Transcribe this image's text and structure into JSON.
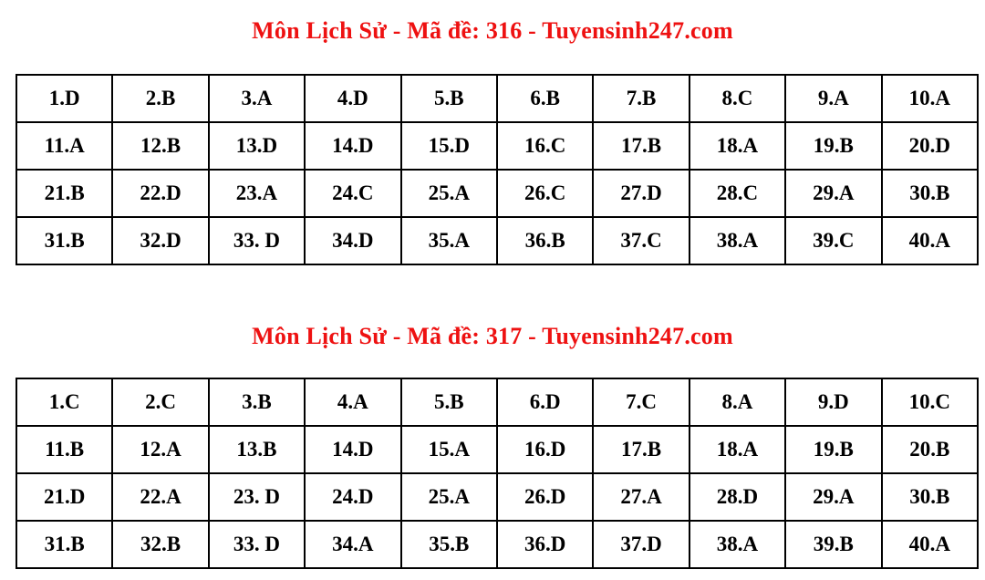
{
  "page": {
    "background": "#ffffff",
    "title_color": "#ee1111",
    "table_border_color": "#000000",
    "text_color": "#000000"
  },
  "sections": [
    {
      "title": "Môn Lịch Sử - Mã đề: 316 - Tuyensinh247.com",
      "subject": "Môn Lịch Sử",
      "exam_code": "316",
      "source": "Tuyensinh247.com",
      "rows": [
        [
          "1.D",
          "2.B",
          "3.A",
          "4.D",
          "5.B",
          "6.B",
          "7.B",
          "8.C",
          "9.A",
          "10.A"
        ],
        [
          "11.A",
          "12.B",
          "13.D",
          "14.D",
          "15.D",
          "16.C",
          "17.B",
          "18.A",
          "19.B",
          "20.D"
        ],
        [
          "21.B",
          "22.D",
          "23.A",
          "24.C",
          "25.A",
          "26.C",
          "27.D",
          "28.C",
          "29.A",
          "30.B"
        ],
        [
          "31.B",
          "32.D",
          "33. D",
          "34.D",
          "35.A",
          "36.B",
          "37.C",
          "38.A",
          "39.C",
          "40.A"
        ]
      ]
    },
    {
      "title": "Môn Lịch Sử - Mã đề: 317 - Tuyensinh247.com",
      "subject": "Môn Lịch Sử",
      "exam_code": "317",
      "source": "Tuyensinh247.com",
      "rows": [
        [
          "1.C",
          "2.C",
          "3.B",
          "4.A",
          "5.B",
          "6.D",
          "7.C",
          "8.A",
          "9.D",
          "10.C"
        ],
        [
          "11.B",
          "12.A",
          "13.B",
          "14.D",
          "15.A",
          "16.D",
          "17.B",
          "18.A",
          "19.B",
          "20.B"
        ],
        [
          "21.D",
          "22.A",
          "23. D",
          "24.D",
          "25.A",
          "26.D",
          "27.A",
          "28.D",
          "29.A",
          "30.B"
        ],
        [
          "31.B",
          "32.B",
          "33. D",
          "34.A",
          "35.B",
          "36.D",
          "37.D",
          "38.A",
          "39.B",
          "40.A"
        ]
      ]
    }
  ]
}
